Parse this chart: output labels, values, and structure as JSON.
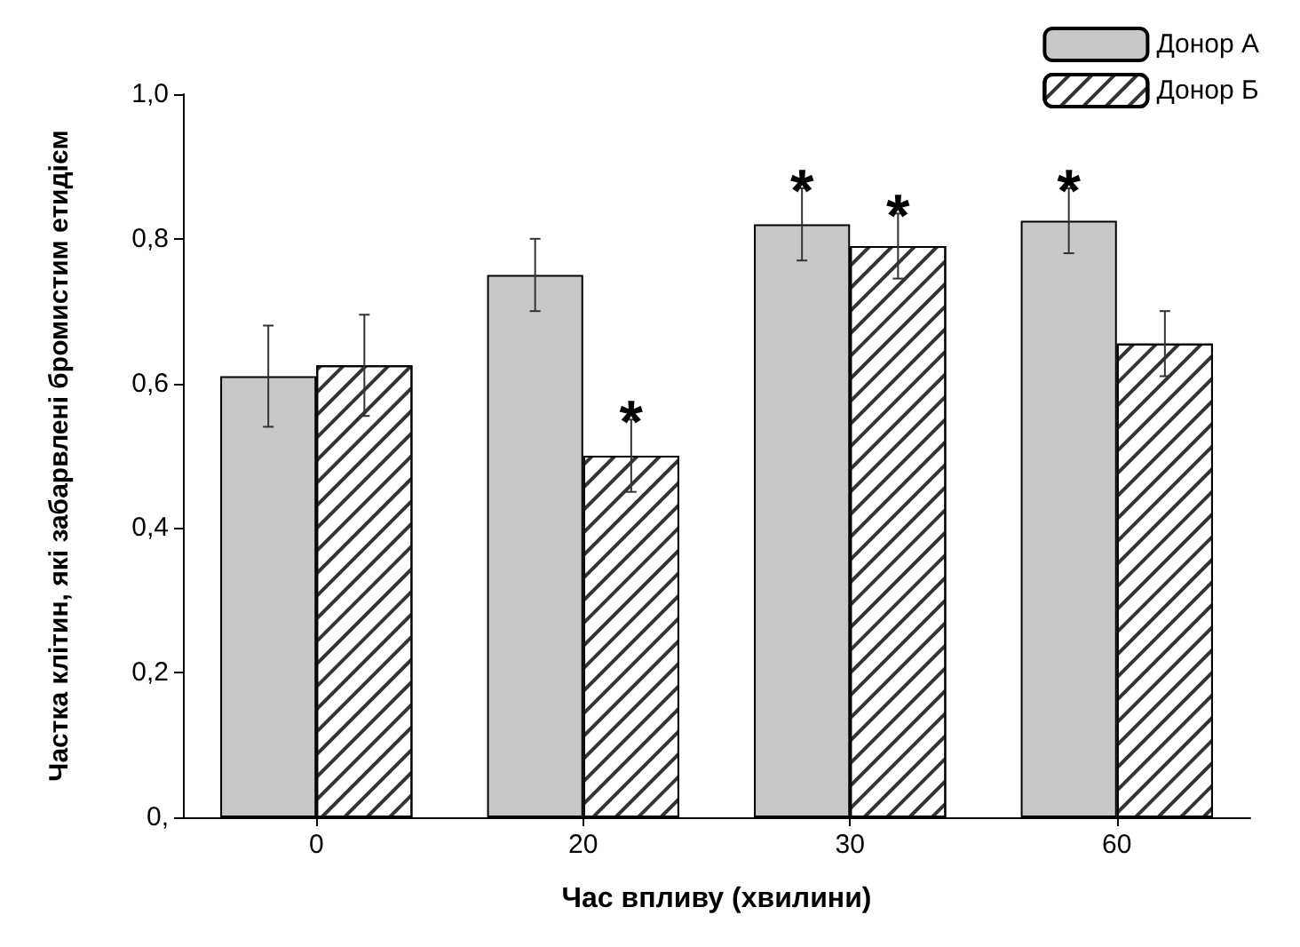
{
  "chart_data": {
    "type": "bar",
    "xlabel": "Час впливу (хвилини)",
    "ylabel": "Частка клітин, які забарвлені бромистим етидієм",
    "categories": [
      "0",
      "20",
      "30",
      "60"
    ],
    "series": [
      {
        "name": "Донор А",
        "color": "#c8c8c8",
        "values": [
          0.61,
          0.75,
          0.82,
          0.825
        ],
        "errors": [
          0.07,
          0.05,
          0.05,
          0.045
        ]
      },
      {
        "name": "Донор Б",
        "color": "#ffffff",
        "values": [
          0.625,
          0.5,
          0.79,
          0.655
        ],
        "errors": [
          0.07,
          0.05,
          0.045,
          0.045
        ]
      }
    ],
    "ylim": [
      0,
      1
    ],
    "yticks": [
      {
        "value": 0,
        "label": "0,"
      },
      {
        "value": 0.2,
        "label": "0,2"
      },
      {
        "value": 0.4,
        "label": "0,4"
      },
      {
        "value": 0.6,
        "label": "0,6"
      },
      {
        "value": 0.8,
        "label": "0,8"
      },
      {
        "value": 1,
        "label": "1,0"
      }
    ],
    "annotations": [
      {
        "text": "*",
        "x": "20",
        "y": 0.5
      },
      {
        "text": "*",
        "x": "30",
        "y": 0.82
      },
      {
        "text": "*",
        "x": "30",
        "y": 0.79
      },
      {
        "text": "*",
        "x": "60",
        "y": 0.825
      }
    ],
    "grid": false,
    "legend": "top right"
  }
}
